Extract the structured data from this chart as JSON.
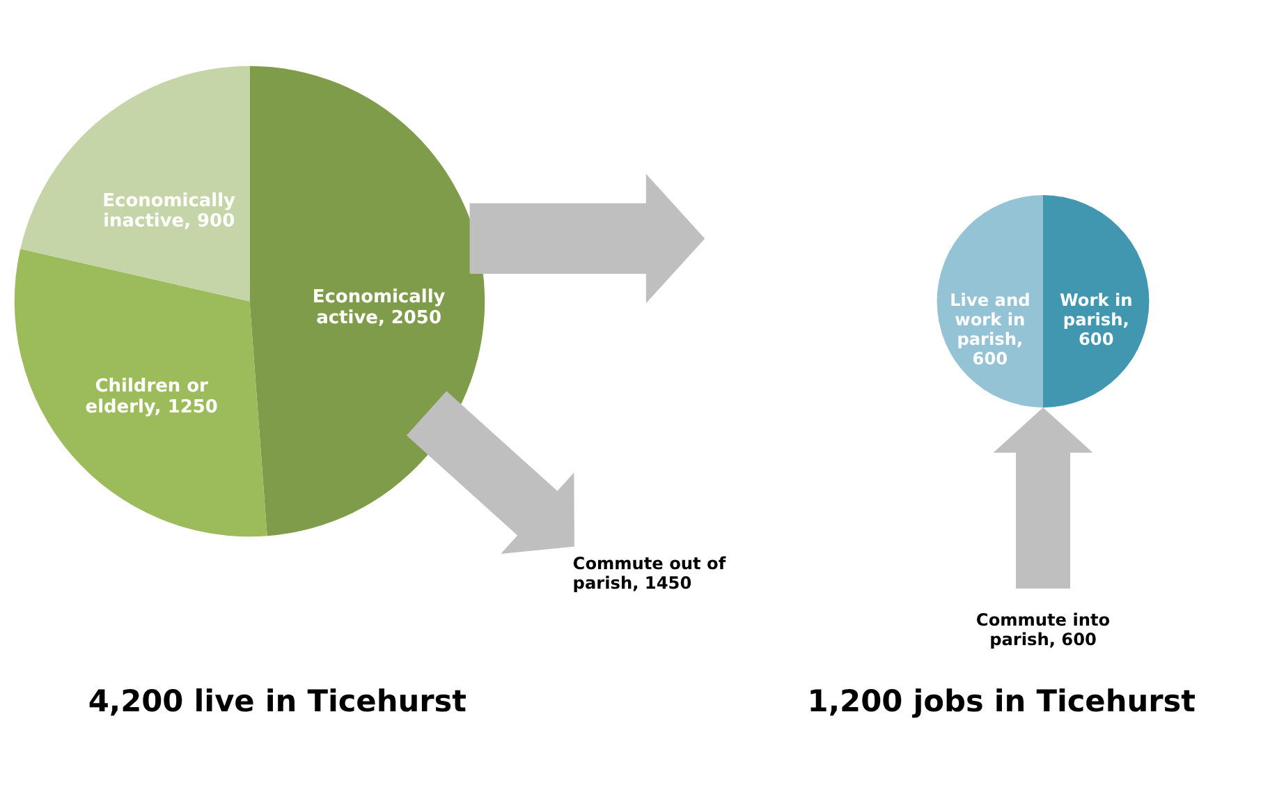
{
  "chart_data": [
    {
      "type": "pie",
      "title": "4,200 live in Ticehurst",
      "categories": [
        "Economically active, 2050",
        "Children or elderly, 1250",
        "Economically inactive, 900"
      ],
      "values": [
        2050,
        1250,
        900
      ],
      "colors": [
        "#7f9c4a",
        "#9cbb5a",
        "#c5d5a8"
      ],
      "annotations": [
        "Commute out of parish, 1450"
      ]
    },
    {
      "type": "pie",
      "title": "1,200 jobs in Ticehurst",
      "categories": [
        "Work in parish, 600",
        "Live and work in parish, 600"
      ],
      "values": [
        600,
        600
      ],
      "colors": [
        "#4297b0",
        "#93c3d4"
      ],
      "annotations": [
        "Commute into parish, 600"
      ]
    }
  ]
}
